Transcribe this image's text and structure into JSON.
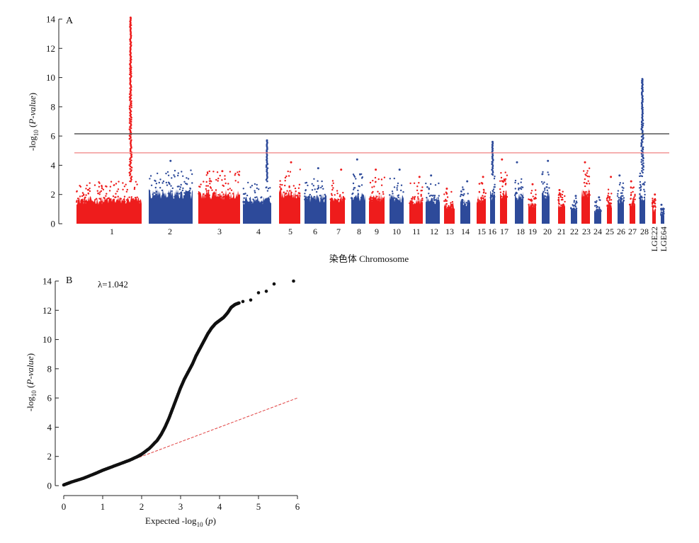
{
  "chart_data": [
    {
      "panel": "A",
      "type": "scatter",
      "style": "manhattan",
      "xlabel": "染色体 Chromosome",
      "ylabel": "-log10 (P-value)",
      "ylim": [
        0,
        14
      ],
      "yticks": [
        "0",
        "2",
        "4",
        "6",
        "8",
        "10",
        "12",
        "14"
      ],
      "thresholds": [
        {
          "value": 6.15,
          "color": "#555555"
        },
        {
          "value": 4.85,
          "color": "#f08080"
        }
      ],
      "colors": {
        "odd": "#ee1c1c",
        "even": "#2d4a9a"
      },
      "chromosomes": [
        {
          "label": "1",
          "noise_max": 2.9,
          "peak": 14.1,
          "peak_pos": 0.83
        },
        {
          "label": "2",
          "noise_max": 3.7,
          "peak": 4.3
        },
        {
          "label": "3",
          "noise_max": 3.6,
          "peak": 3.6
        },
        {
          "label": "4",
          "noise_max": 2.9,
          "peak": 5.7,
          "peak_pos": 0.85
        },
        {
          "label": "5",
          "noise_max": 3.8,
          "peak": 4.2
        },
        {
          "label": "6",
          "noise_max": 3.2,
          "peak": 3.8
        },
        {
          "label": "7",
          "noise_max": 3.0,
          "peak": 3.7
        },
        {
          "label": "8",
          "noise_max": 3.4,
          "peak": 4.4
        },
        {
          "label": "9",
          "noise_max": 3.2,
          "peak": 3.7
        },
        {
          "label": "10",
          "noise_max": 3.1,
          "peak": 3.7
        },
        {
          "label": "11",
          "noise_max": 2.8,
          "peak": 3.2
        },
        {
          "label": "12",
          "noise_max": 2.9,
          "peak": 3.3
        },
        {
          "label": "13",
          "noise_max": 2.2,
          "peak": 2.4
        },
        {
          "label": "14",
          "noise_max": 2.6,
          "peak": 2.9
        },
        {
          "label": "15",
          "noise_max": 3.0,
          "peak": 3.2
        },
        {
          "label": "16",
          "noise_max": 3.5,
          "peak": 5.6,
          "peak_pos": 0.5
        },
        {
          "label": "17",
          "noise_max": 3.6,
          "peak": 4.4
        },
        {
          "label": "18",
          "noise_max": 3.4,
          "peak": 4.2
        },
        {
          "label": "19",
          "noise_max": 2.4,
          "peak": 2.7
        },
        {
          "label": "20",
          "noise_max": 3.6,
          "peak": 4.3
        },
        {
          "label": "21",
          "noise_max": 2.2,
          "peak": 2.3
        },
        {
          "label": "22",
          "noise_max": 1.8,
          "peak": 1.9
        },
        {
          "label": "23",
          "noise_max": 3.8,
          "peak": 4.2
        },
        {
          "label": "24",
          "noise_max": 1.7,
          "peak": 1.8
        },
        {
          "label": "25",
          "noise_max": 2.4,
          "peak": 3.2
        },
        {
          "label": "26",
          "noise_max": 3.0,
          "peak": 3.3
        },
        {
          "label": "27",
          "noise_max": 2.6,
          "peak": 2.9
        },
        {
          "label": "28",
          "noise_max": 3.5,
          "peak": 9.9,
          "peak_pos": 0.5
        },
        {
          "label": "LGE22",
          "noise_max": 1.8,
          "peak": 2.0
        },
        {
          "label": "LGE64",
          "noise_max": 1.1,
          "peak": 1.3
        }
      ],
      "panel_label": "A"
    },
    {
      "panel": "B",
      "type": "scatter",
      "style": "qq",
      "xlabel": "Expected -log10 (p)",
      "ylabel": "-log10 (P-value)",
      "xlim": [
        0,
        6
      ],
      "ylim": [
        0,
        14
      ],
      "xticks": [
        "0",
        "1",
        "2",
        "3",
        "4",
        "5",
        "6"
      ],
      "yticks": [
        "0",
        "2",
        "4",
        "6",
        "8",
        "10",
        "12",
        "14"
      ],
      "reference_line": {
        "slope": 1,
        "color": "#e04040"
      },
      "annotation": "λ=1.042",
      "points": [
        [
          0.0,
          0.05
        ],
        [
          0.2,
          0.25
        ],
        [
          0.5,
          0.5
        ],
        [
          0.8,
          0.82
        ],
        [
          1.0,
          1.05
        ],
        [
          1.2,
          1.25
        ],
        [
          1.5,
          1.55
        ],
        [
          1.7,
          1.75
        ],
        [
          1.9,
          2.0
        ],
        [
          2.0,
          2.15
        ],
        [
          2.2,
          2.55
        ],
        [
          2.4,
          3.1
        ],
        [
          2.5,
          3.5
        ],
        [
          2.6,
          4.0
        ],
        [
          2.7,
          4.6
        ],
        [
          2.8,
          5.3
        ],
        [
          2.9,
          6.0
        ],
        [
          3.0,
          6.7
        ],
        [
          3.1,
          7.3
        ],
        [
          3.2,
          7.8
        ],
        [
          3.3,
          8.3
        ],
        [
          3.4,
          8.9
        ],
        [
          3.5,
          9.4
        ],
        [
          3.6,
          9.9
        ],
        [
          3.7,
          10.4
        ],
        [
          3.8,
          10.8
        ],
        [
          3.9,
          11.1
        ],
        [
          4.0,
          11.3
        ],
        [
          4.1,
          11.5
        ],
        [
          4.2,
          11.8
        ],
        [
          4.3,
          12.2
        ],
        [
          4.4,
          12.4
        ],
        [
          4.5,
          12.5
        ],
        [
          4.6,
          12.6
        ],
        [
          4.8,
          12.7
        ],
        [
          5.0,
          13.2
        ],
        [
          5.2,
          13.3
        ],
        [
          5.4,
          13.8
        ],
        [
          5.9,
          14.0
        ]
      ],
      "panel_label": "B"
    }
  ]
}
